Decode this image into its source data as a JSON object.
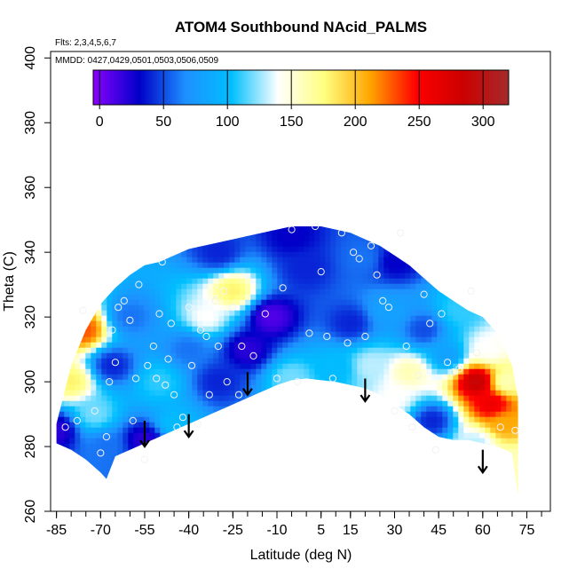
{
  "chart_data": {
    "type": "heatmap",
    "title": "ATOM4 Southbound NAcid_PALMS",
    "subtitle_flights": "Flts: 2,3,4,5,6,7",
    "subtitle_dates": "MMDD: 0427,0429,0501,0503,0506,0509",
    "xlabel": "Latitude (deg N)",
    "ylabel": "Theta (C)",
    "xlim": [
      -87,
      83
    ],
    "ylim": [
      260,
      402
    ],
    "x_ticks": [
      -85,
      -70,
      -55,
      -40,
      -25,
      -10,
      5,
      15,
      30,
      45,
      60,
      75
    ],
    "y_ticks": [
      260,
      280,
      300,
      320,
      340,
      360,
      380,
      400
    ],
    "colorbar": {
      "range": [
        -5,
        320
      ],
      "ticks": [
        0,
        50,
        100,
        150,
        200,
        250,
        300
      ],
      "stops": [
        "#8b00ff",
        "#0000c8",
        "#1e90ff",
        "#00bfff",
        "#ffffff",
        "#ffff80",
        "#ffa500",
        "#ff0000",
        "#cd0000",
        "#a52a2a"
      ]
    },
    "domain_upper": [
      [
        -85,
        287
      ],
      [
        -80,
        305
      ],
      [
        -75,
        316
      ],
      [
        -70,
        324
      ],
      [
        -65,
        329
      ],
      [
        -60,
        333
      ],
      [
        -55,
        336
      ],
      [
        -50,
        337
      ],
      [
        -45,
        339
      ],
      [
        -40,
        341
      ],
      [
        -35,
        342
      ],
      [
        -30,
        343
      ],
      [
        -25,
        344
      ],
      [
        -20,
        345
      ],
      [
        -15,
        346
      ],
      [
        -10,
        347
      ],
      [
        -5,
        348
      ],
      [
        0,
        348
      ],
      [
        5,
        348
      ],
      [
        10,
        347
      ],
      [
        15,
        346
      ],
      [
        20,
        344
      ],
      [
        25,
        342
      ],
      [
        30,
        339
      ],
      [
        35,
        336
      ],
      [
        40,
        332
      ],
      [
        45,
        328
      ],
      [
        50,
        325
      ],
      [
        55,
        322
      ],
      [
        60,
        320
      ],
      [
        65,
        315
      ],
      [
        70,
        305
      ],
      [
        72,
        295
      ]
    ],
    "domain_lower": [
      [
        72,
        265
      ],
      [
        70,
        278
      ],
      [
        65,
        280
      ],
      [
        60,
        281
      ],
      [
        55,
        282
      ],
      [
        50,
        282
      ],
      [
        45,
        283
      ],
      [
        40,
        286
      ],
      [
        35,
        290
      ],
      [
        30,
        293
      ],
      [
        25,
        296
      ],
      [
        20,
        298
      ],
      [
        15,
        299
      ],
      [
        10,
        300
      ],
      [
        5,
        300.5
      ],
      [
        0,
        301
      ],
      [
        -5,
        300.5
      ],
      [
        -10,
        299
      ],
      [
        -15,
        297
      ],
      [
        -20,
        295
      ],
      [
        -25,
        293
      ],
      [
        -30,
        291
      ],
      [
        -35,
        289
      ],
      [
        -40,
        287
      ],
      [
        -45,
        285
      ],
      [
        -50,
        283
      ],
      [
        -55,
        281
      ],
      [
        -60,
        279
      ],
      [
        -65,
        277
      ],
      [
        -68,
        270
      ],
      [
        -70,
        272
      ],
      [
        -75,
        276
      ],
      [
        -80,
        279
      ],
      [
        -85,
        281
      ]
    ],
    "field_anchors": [
      {
        "x": -85,
        "y": 285,
        "v": 20
      },
      {
        "x": -80,
        "y": 300,
        "v": 180
      },
      {
        "x": -76,
        "y": 316,
        "v": 230
      },
      {
        "x": -72,
        "y": 290,
        "v": 120
      },
      {
        "x": -68,
        "y": 280,
        "v": 60
      },
      {
        "x": -66,
        "y": 305,
        "v": 40
      },
      {
        "x": -60,
        "y": 320,
        "v": 60
      },
      {
        "x": -55,
        "y": 282,
        "v": 20
      },
      {
        "x": -50,
        "y": 300,
        "v": 110
      },
      {
        "x": -45,
        "y": 287,
        "v": 100
      },
      {
        "x": -40,
        "y": 310,
        "v": 60
      },
      {
        "x": -34,
        "y": 320,
        "v": 140
      },
      {
        "x": -30,
        "y": 300,
        "v": 40
      },
      {
        "x": -25,
        "y": 328,
        "v": 180
      },
      {
        "x": -20,
        "y": 310,
        "v": 20
      },
      {
        "x": -12,
        "y": 320,
        "v": 10
      },
      {
        "x": -5,
        "y": 301,
        "v": 120
      },
      {
        "x": 0,
        "y": 335,
        "v": 40
      },
      {
        "x": 10,
        "y": 304,
        "v": 100
      },
      {
        "x": 15,
        "y": 318,
        "v": 40
      },
      {
        "x": 20,
        "y": 338,
        "v": 60
      },
      {
        "x": 22,
        "y": 305,
        "v": 130
      },
      {
        "x": 28,
        "y": 322,
        "v": 80
      },
      {
        "x": 35,
        "y": 303,
        "v": 160
      },
      {
        "x": 40,
        "y": 316,
        "v": 50
      },
      {
        "x": 43,
        "y": 288,
        "v": 40
      },
      {
        "x": 48,
        "y": 308,
        "v": 80
      },
      {
        "x": 52,
        "y": 322,
        "v": 110
      },
      {
        "x": 58,
        "y": 300,
        "v": 290
      },
      {
        "x": 63,
        "y": 293,
        "v": 260
      },
      {
        "x": 67,
        "y": 287,
        "v": 210
      },
      {
        "x": 62,
        "y": 310,
        "v": 140
      },
      {
        "x": 68,
        "y": 300,
        "v": 160
      },
      {
        "x": 58,
        "y": 281,
        "v": 130
      },
      {
        "x": 70,
        "y": 275,
        "v": 160
      },
      {
        "x": 30,
        "y": 295,
        "v": 140
      },
      {
        "x": -5,
        "y": 345,
        "v": 30
      },
      {
        "x": -30,
        "y": 340,
        "v": 40
      },
      {
        "x": 30,
        "y": 337,
        "v": 30
      }
    ],
    "sample_points": [
      [
        -82,
        286
      ],
      [
        -78,
        288
      ],
      [
        -76,
        322
      ],
      [
        -72,
        291
      ],
      [
        -70,
        278
      ],
      [
        -68,
        283
      ],
      [
        -67,
        300
      ],
      [
        -65,
        306
      ],
      [
        -66,
        316
      ],
      [
        -64,
        323
      ],
      [
        -62,
        325
      ],
      [
        -60,
        319
      ],
      [
        -59,
        288
      ],
      [
        -58,
        301
      ],
      [
        -57,
        330
      ],
      [
        -55,
        276
      ],
      [
        -54,
        305
      ],
      [
        -52,
        311
      ],
      [
        -51,
        301
      ],
      [
        -50,
        321
      ],
      [
        -49,
        337
      ],
      [
        -48,
        299
      ],
      [
        -47,
        307
      ],
      [
        -46,
        318
      ],
      [
        -45,
        296
      ],
      [
        -44,
        286
      ],
      [
        -42,
        289
      ],
      [
        -40,
        323
      ],
      [
        -39,
        305
      ],
      [
        -37,
        287
      ],
      [
        -36,
        316
      ],
      [
        -34,
        314
      ],
      [
        -33,
        296
      ],
      [
        -31,
        325
      ],
      [
        -30,
        311
      ],
      [
        -28,
        328
      ],
      [
        -27,
        300
      ],
      [
        -25,
        323
      ],
      [
        -23,
        296
      ],
      [
        -22,
        311
      ],
      [
        -18,
        308
      ],
      [
        -14,
        321
      ],
      [
        -10,
        301
      ],
      [
        -8,
        329
      ],
      [
        -5,
        347
      ],
      [
        -3,
        300
      ],
      [
        1,
        315
      ],
      [
        3,
        348
      ],
      [
        5,
        334
      ],
      [
        7,
        314
      ],
      [
        9,
        301
      ],
      [
        12,
        346
      ],
      [
        14,
        312
      ],
      [
        16,
        340
      ],
      [
        18,
        338
      ],
      [
        20,
        314
      ],
      [
        22,
        342
      ],
      [
        24,
        333
      ],
      [
        26,
        325
      ],
      [
        28,
        323
      ],
      [
        30,
        291
      ],
      [
        32,
        346
      ],
      [
        34,
        311
      ],
      [
        36,
        286
      ],
      [
        38,
        302
      ],
      [
        40,
        327
      ],
      [
        42,
        318
      ],
      [
        44,
        279
      ],
      [
        46,
        321
      ],
      [
        48,
        306
      ],
      [
        50,
        303
      ],
      [
        52,
        304
      ],
      [
        56,
        328
      ],
      [
        58,
        309
      ],
      [
        66,
        286
      ],
      [
        71,
        285
      ]
    ],
    "arrows_x": [
      -55,
      -40,
      -20,
      20,
      60
    ],
    "arrow_tips_theta": [
      280,
      283,
      296,
      294,
      272
    ],
    "arrow_tails_theta": [
      288,
      290,
      303,
      301,
      279
    ]
  }
}
